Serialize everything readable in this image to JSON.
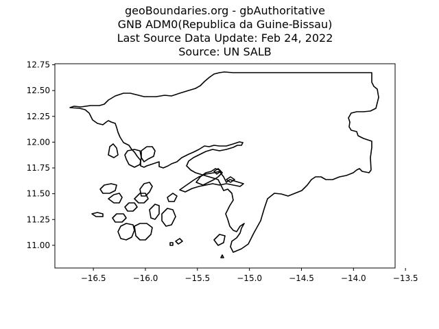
{
  "title_lines": [
    "geoBoundaries.org - gbAuthoritative",
    "GNB ADM0(Republica da Guine-Bissau)",
    "Last Source Data Update: Feb 24, 2022",
    "Source: UN SALB"
  ],
  "chart_data": {
    "type": "map",
    "title": "geoBoundaries.org - gbAuthoritative / GNB ADM0(Republica da Guine-Bissau) / Last Source Data Update: Feb 24, 2022 / Source: UN SALB",
    "xlim": [
      -16.87,
      -13.6
    ],
    "ylim": [
      10.78,
      12.76
    ],
    "x_ticks": [
      -16.5,
      -16.0,
      -15.5,
      -15.0,
      -14.5,
      -14.0,
      -13.5
    ],
    "x_tick_labels": [
      "−16.5",
      "−16.0",
      "−15.5",
      "−15.0",
      "−14.5",
      "−14.0",
      "−13.5"
    ],
    "y_ticks": [
      11.0,
      11.25,
      11.5,
      11.75,
      12.0,
      12.25,
      12.5,
      12.75
    ],
    "y_tick_labels": [
      "11.00",
      "11.25",
      "11.50",
      "11.75",
      "12.00",
      "12.25",
      "12.50",
      "12.75"
    ],
    "grid": false,
    "line_color": "#000000",
    "fill": "none"
  }
}
